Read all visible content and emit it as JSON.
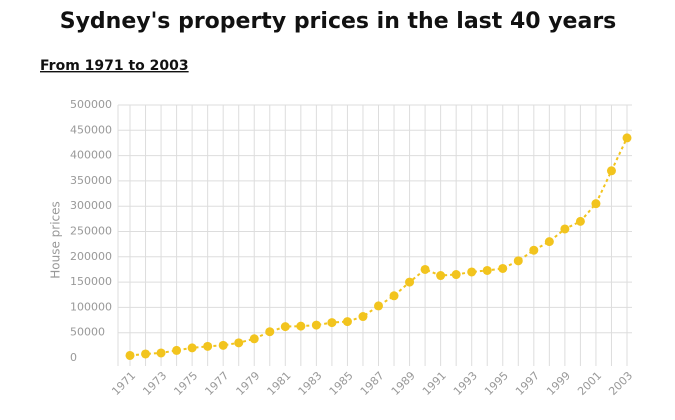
{
  "chart_data": {
    "type": "line",
    "title": "Sydney's property prices in the last 40 years",
    "subtitle": "From 1971 to 2003",
    "y_label": "House prices",
    "categories": [
      "1971",
      null,
      "1973",
      null,
      "1975",
      null,
      "1977",
      null,
      "1979",
      null,
      "1981",
      null,
      "1983",
      null,
      "1985",
      null,
      "1987",
      null,
      "1989",
      null,
      "1991",
      null,
      "1993",
      null,
      "1995",
      null,
      "1997",
      null,
      "1999",
      null,
      "2001",
      null,
      "2003"
    ],
    "series": [
      {
        "name": "House prices",
        "color": "#f2c41e",
        "values": [
          5000,
          8000,
          10000,
          15000,
          20000,
          23000,
          25000,
          30000,
          38000,
          52000,
          62000,
          63000,
          65000,
          70000,
          72000,
          82000,
          103000,
          123000,
          150000,
          175000,
          163000,
          165000,
          170000,
          173000,
          177000,
          192000,
          213000,
          230000,
          255000,
          270000,
          305000,
          370000,
          435000
        ]
      }
    ],
    "ylim": [
      0,
      500000
    ],
    "yticks": [
      0,
      50000,
      100000,
      150000,
      200000,
      250000,
      300000,
      350000,
      400000,
      450000,
      500000
    ],
    "grid": true
  }
}
